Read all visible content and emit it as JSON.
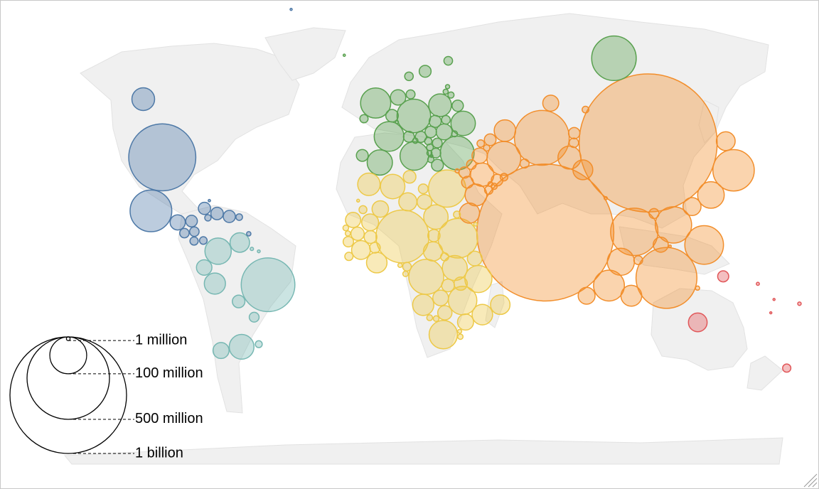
{
  "chart_data": {
    "type": "bubble_map",
    "size_legend": [
      {
        "value": 1000000,
        "label": "1 million"
      },
      {
        "value": 100000000,
        "label": "100 million"
      },
      {
        "value": 500000000,
        "label": "500 million"
      },
      {
        "value": 1000000000,
        "label": "1 billion"
      }
    ],
    "series": [
      {
        "color": "#4e79a7",
        "lon": [
          -98,
          -106,
          -102,
          -90.2,
          -86.5,
          -88.9,
          -85,
          -84,
          -80,
          -79.5,
          -72.3,
          -70.2,
          -77.3,
          -66.5,
          -77.4,
          -42,
          -61.2
        ],
        "lat": [
          39,
          56,
          23,
          15.5,
          15,
          13.7,
          12.9,
          9.9,
          8.5,
          21.5,
          19,
          18.7,
          18.1,
          18.2,
          24.5,
          72,
          10.5
        ],
        "values": [
          331000000,
          38000000,
          128000000,
          17000000,
          10000000,
          6500000,
          6600000,
          5000000,
          4300000,
          11000000,
          11400000,
          10800000,
          3000000,
          3200000,
          400000,
          56000,
          1400000
        ]
      },
      {
        "color": "#76b7b2",
        "lon": [
          -52,
          -73,
          -64,
          -75,
          -66,
          -71,
          -78.5,
          -64.5,
          -58,
          -56,
          -59,
          -56
        ],
        "lat": [
          -10,
          4,
          -34,
          -9.5,
          7,
          -35,
          -1.5,
          -16.7,
          -23,
          -33,
          5,
          4
        ],
        "values": [
          212000000,
          51000000,
          45000000,
          33000000,
          28000000,
          19000000,
          17600000,
          11700000,
          7100000,
          3500000,
          800000,
          600000
        ]
      },
      {
        "color": "#59a14f",
        "lon": [
          100,
          10.4,
          -2,
          2.3,
          12.5,
          -3.7,
          31,
          19,
          25,
          5.3,
          4.5,
          15.5,
          22,
          -8,
          16,
          19.5,
          28,
          14.5,
          8.2,
          21,
          25.5,
          10,
          26,
          19.7,
          9,
          -8,
          15.5,
          17.8,
          20,
          24,
          14.8,
          24.6,
          21.7,
          25.5,
          28.5,
          -19,
          19.3,
          6.1,
          35
        ],
        "lat": [
          62,
          51,
          54,
          46.5,
          42.5,
          40,
          49,
          52,
          46,
          52.2,
          50.6,
          49.8,
          39,
          39.5,
          62,
          47.2,
          53.7,
          47.5,
          46.8,
          44,
          42.7,
          56,
          64,
          48.7,
          61,
          53,
          45.1,
          44.2,
          41,
          55.2,
          46.1,
          57,
          41.6,
          58.6,
          47,
          65,
          42.7,
          49.8,
          39
        ],
        "values": [
          146000000,
          83000000,
          67000000,
          65000000,
          60000000,
          47000000,
          44000000,
          38000000,
          19000000,
          17400000,
          11500000,
          10700000,
          10400000,
          10300000,
          10400000,
          9700000,
          9400000,
          9000000,
          8700000,
          6900000,
          6900000,
          5800000,
          5500000,
          5500000,
          5400000,
          5000000,
          4000000,
          3300000,
          2800000,
          2800000,
          2100000,
          1900000,
          2000000,
          1300000,
          2600000,
          370000,
          620000,
          630000,
          84000000
        ]
      },
      {
        "color": "#edc948",
        "lon": [
          8,
          39.5,
          30,
          23,
          35,
          24,
          38,
          32.3,
          3,
          30,
          -6,
          17.9,
          35.5,
          -1,
          46.9,
          12.4,
          -5.5,
          8,
          -1.6,
          -4,
          34.3,
          27.8,
          -14.5,
          18.7,
          46,
          29.2,
          -10.9,
          29.9,
          2.3,
          29.9,
          9.5,
          31.3,
          0.8,
          -11.8,
          17,
          15.8,
          -9.4,
          20.9,
          -10.9,
          39,
          18.5,
          -15.3,
          24.7,
          11.6,
          28.2,
          -15,
          10.3,
          31.5,
          42.6,
          -13
        ],
        "lat": [
          9.5,
          8.6,
          26.5,
          -2.9,
          -6.4,
          -29,
          0.5,
          1.4,
          28,
          15.5,
          32,
          -12.3,
          -18,
          7.9,
          -19,
          5.7,
          7.5,
          17.6,
          12.2,
          17.6,
          -13.2,
          -13.1,
          14.5,
          15.5,
          5.2,
          -19,
          10.4,
          -1.9,
          9.3,
          -3.4,
          34,
          7.9,
          8.6,
          8.5,
          27,
          -0.7,
          6.4,
          6.6,
          21,
          15.2,
          -22.9,
          13.4,
          -22.3,
          -0.8,
          -29.6,
          12,
          1.6,
          -26.5,
          11.8,
          24.5
        ],
        "values": [
          206000000,
          115000000,
          102000000,
          90000000,
          60000000,
          59000000,
          54000000,
          46000000,
          44000000,
          44000000,
          37000000,
          33000000,
          31000000,
          31000000,
          28000000,
          27000000,
          26000000,
          24000000,
          21000000,
          20000000,
          19000000,
          18000000,
          17000000,
          16000000,
          16000000,
          15000000,
          13000000,
          13000000,
          12000000,
          12000000,
          11800000,
          11000000,
          8300000,
          8000000,
          6900000,
          5500000,
          5000000,
          4800000,
          4600000,
          3500000,
          2500000,
          2400000,
          2400000,
          2200000,
          2100000,
          2000000,
          1400000,
          1200000,
          1000000,
          600000
        ]
      },
      {
        "color": "#f28e2b",
        "lon": [
          104,
          79,
          117,
          69,
          90,
          138,
          122,
          106,
          53,
          101,
          96,
          127.8,
          43.7,
          67.7,
          45,
          64.6,
          102,
          48,
          84,
          127.5,
          80.7,
          67,
          38.5,
          105,
          36.2,
          47.6,
          54,
          71.3,
          34.9,
          102.5,
          74.8,
          59.6,
          103.8,
          56,
          35.9,
          47.5,
          43.4,
          103.8,
          45,
          51.2,
          50.6,
          125.7,
          33,
          90.4,
          114.7,
          121
        ],
        "lat": [
          35,
          22,
          -2.5,
          30,
          24,
          37,
          12.5,
          16,
          32.4,
          15,
          21,
          36.3,
          33,
          33.9,
          24,
          41.4,
          4,
          15.5,
          28.4,
          40.3,
          7.9,
          48,
          35,
          12.5,
          31,
          40.1,
          24,
          38.9,
          31.4,
          19.9,
          41.2,
          39,
          1.35,
          21.5,
          33.9,
          29.3,
          42.3,
          46.9,
          40.1,
          25.3,
          26,
          -8.9,
          35,
          27.5,
          4.5,
          23.7
        ],
        "values": [
          1402000000,
          1380000000,
          273000000,
          221000000,
          165000000,
          126000000,
          110000000,
          97000000,
          84000000,
          70000000,
          54000000,
          52000000,
          40000000,
          39000000,
          35000000,
          34000000,
          32000000,
          30000000,
          29000000,
          26000000,
          21000000,
          18800000,
          17500000,
          16700000,
          10200000,
          10100000,
          9900000,
          9500000,
          9200000,
          7300000,
          6500000,
          6000000,
          5700000,
          5100000,
          6800000,
          4300000,
          4000000,
          3300000,
          3000000,
          2900000,
          1700000,
          1300000,
          1200000,
          770000,
          440000,
          23800000
        ]
      },
      {
        "color": "#e15759",
        "lon": [
          134,
          145,
          172.5,
          178,
          160,
          167,
          165.6
        ],
        "lat": [
          -25,
          -6.5,
          -41,
          -17.7,
          -9.6,
          -16,
          -21.3
        ],
        "values": [
          25700000,
          9000000,
          5000000,
          900000,
          690000,
          300000,
          280000
        ]
      }
    ]
  }
}
